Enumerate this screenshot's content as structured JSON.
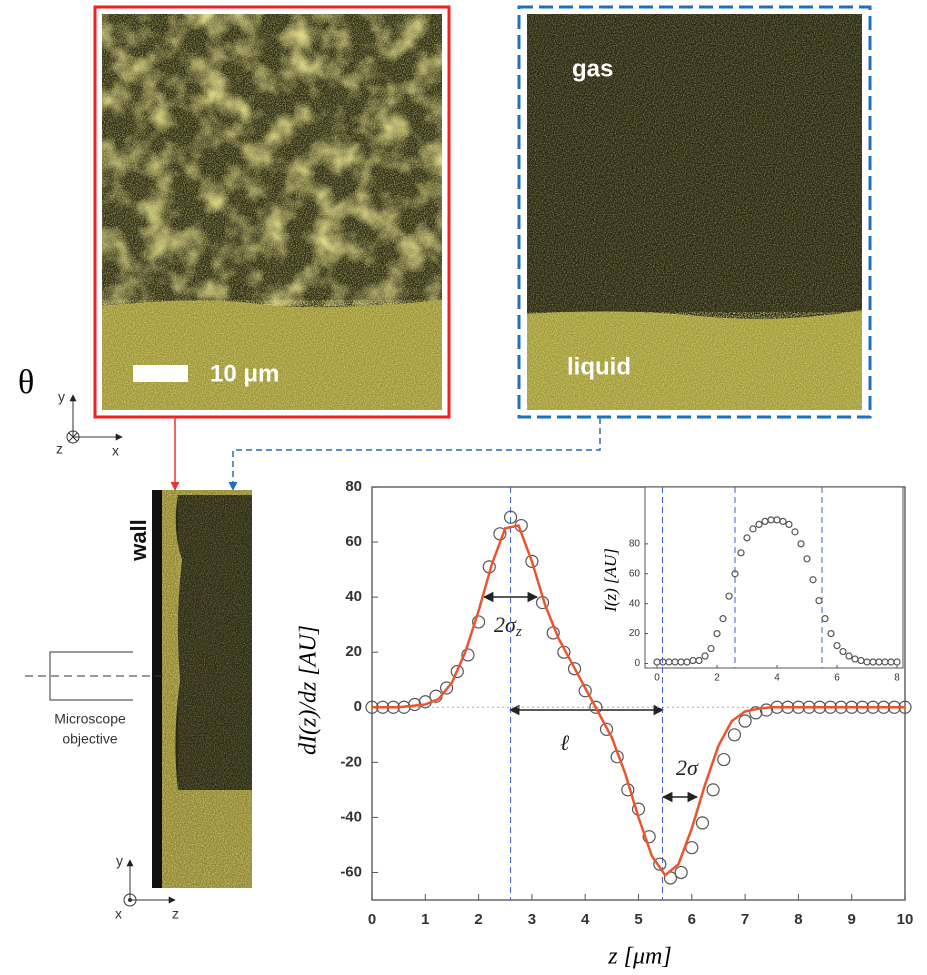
{
  "figure": {
    "theta": "θ",
    "scale_bar": "10 μm",
    "gas": "gas",
    "liquid": "liquid",
    "wall": "wall",
    "objective": [
      "Microscope",
      "objective"
    ],
    "axes_top": {
      "y": "y",
      "z": "z",
      "x": "x"
    },
    "axes_bottom": {
      "y": "y",
      "x": "x",
      "z": "z"
    }
  },
  "chart_data": [
    {
      "type": "scatter",
      "x_label": "z  [μm]",
      "y_label": "dI(z)/dz  [AU]",
      "xlim": [
        0,
        10
      ],
      "ylim": [
        -70,
        80
      ],
      "xticks": [
        0,
        1,
        2,
        3,
        4,
        5,
        6,
        7,
        8,
        9,
        10
      ],
      "yticks": [
        -60,
        -40,
        -20,
        0,
        20,
        40,
        60,
        80
      ],
      "reference_lines": [
        2.6,
        5.45
      ],
      "annotations": [
        {
          "text": "2σ",
          "sub": "z"
        },
        {
          "text": "ℓ"
        },
        {
          "text": "2σ"
        }
      ],
      "series": [
        {
          "type": "scatter",
          "color": "#555555",
          "x": [
            0,
            0.2,
            0.4,
            0.6,
            0.8,
            1.0,
            1.2,
            1.4,
            1.6,
            1.8,
            2.0,
            2.2,
            2.4,
            2.6,
            2.8,
            3.0,
            3.2,
            3.4,
            3.6,
            3.8,
            4.0,
            4.2,
            4.4,
            4.6,
            4.8,
            5.0,
            5.2,
            5.4,
            5.6,
            5.8,
            6.0,
            6.2,
            6.4,
            6.6,
            6.8,
            7.0,
            7.2,
            7.4,
            7.6,
            7.8,
            8.0,
            8.2,
            8.4,
            8.6,
            8.8,
            9.0,
            9.2,
            9.4,
            9.6,
            9.8,
            10.0
          ],
          "values": [
            0,
            0,
            0,
            0,
            1,
            2,
            4,
            7,
            13,
            19,
            31,
            51,
            63,
            69,
            66,
            53,
            38,
            27,
            20,
            14,
            6,
            0,
            -8,
            -18,
            -30,
            -37,
            -47,
            -57,
            -62,
            -60,
            -51,
            -42,
            -30,
            -19,
            -10,
            -5,
            -2,
            -1,
            0,
            0,
            0,
            0,
            0,
            0,
            0,
            0,
            0,
            0,
            0,
            0,
            0
          ]
        },
        {
          "type": "line",
          "color": "#e8552f",
          "x": [
            0,
            0.25,
            0.5,
            0.75,
            1.0,
            1.25,
            1.5,
            1.75,
            2.0,
            2.25,
            2.5,
            2.75,
            3.0,
            3.25,
            3.5,
            3.75,
            4.0,
            4.25,
            4.5,
            4.75,
            5.0,
            5.25,
            5.5,
            5.75,
            6.0,
            6.25,
            6.5,
            6.75,
            7.0,
            7.25,
            7.5,
            8.0,
            9.0,
            10.0
          ],
          "values": [
            0,
            0,
            0,
            0.5,
            1,
            3,
            9,
            20,
            35,
            52,
            65,
            66,
            53,
            37,
            25,
            16,
            7,
            -2,
            -11,
            -24,
            -40,
            -54,
            -61,
            -57,
            -44,
            -28,
            -14,
            -5,
            -1.5,
            -0.5,
            0,
            0,
            0,
            0
          ]
        }
      ]
    },
    {
      "type": "scatter",
      "y_label": "I(z)  [AU]",
      "xlim": [
        -0.4,
        8.2
      ],
      "ylim": [
        -3,
        118
      ],
      "xticks": [
        0,
        2,
        4,
        6,
        8
      ],
      "yticks": [
        0,
        20,
        40,
        60,
        80
      ],
      "reference_lines": [
        2.6,
        5.5
      ],
      "series": [
        {
          "type": "scatter",
          "color": "#555555",
          "x": [
            0,
            0.2,
            0.4,
            0.6,
            0.8,
            1.0,
            1.2,
            1.4,
            1.6,
            1.8,
            2.0,
            2.2,
            2.4,
            2.6,
            2.8,
            3.0,
            3.2,
            3.4,
            3.6,
            3.8,
            4.0,
            4.2,
            4.4,
            4.6,
            4.8,
            5.0,
            5.2,
            5.4,
            5.6,
            5.8,
            6.0,
            6.2,
            6.4,
            6.6,
            6.8,
            7.0,
            7.2,
            7.4,
            7.6,
            7.8,
            8.0
          ],
          "values": [
            1,
            1,
            1,
            1,
            1,
            1,
            2,
            2,
            5,
            10,
            20,
            30,
            45,
            60,
            74,
            84,
            90,
            93,
            95,
            96,
            96,
            95,
            93,
            88,
            80,
            70,
            56,
            42,
            30,
            20,
            12,
            8,
            5,
            3,
            2,
            1,
            1,
            1,
            1,
            1,
            1
          ]
        }
      ]
    }
  ]
}
